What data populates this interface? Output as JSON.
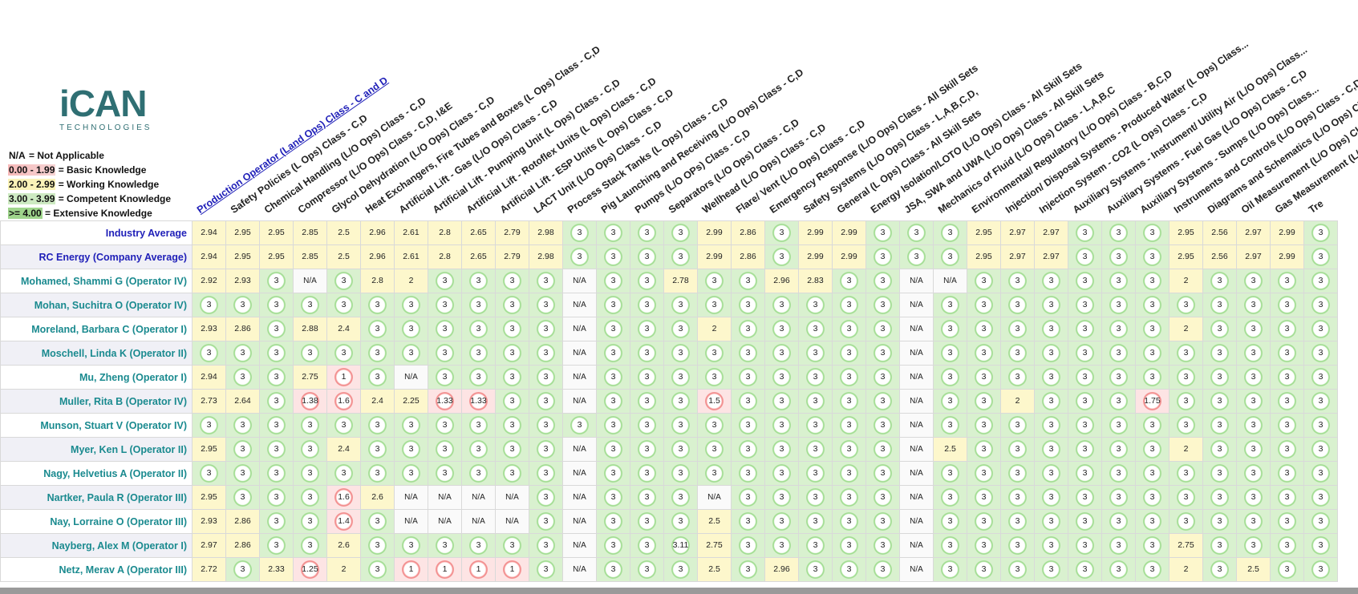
{
  "logo": {
    "word_i": "i",
    "word_c": "C",
    "word_an": "AN",
    "tagline": "TECHNOLOGIES"
  },
  "legend": [
    {
      "key": "N/A",
      "text": " = Not Applicable",
      "cls": ""
    },
    {
      "key": "0.00 - 1.99",
      "text": " = Basic Knowledge",
      "cls": "red"
    },
    {
      "key": "2.00 - 2.99",
      "text": " = Working Knowledge",
      "cls": "yel"
    },
    {
      "key": "3.00 - 3.99",
      "text": " = Competent Knowledge",
      "cls": "grn"
    },
    {
      "key": ">= 4.00",
      "text": " = Extensive Knowledge",
      "cls": "dgn"
    }
  ],
  "columns": [
    "Production Operator (Land Ops) Class - C and D",
    "Safety Policies (L Ops) Class - C,D",
    "Chemical Handling (L/O Ops) Class - C,D",
    "Compressor (L/O Ops) Class - C,D, I&E",
    "Glycol Dehydration (L/O Ops) Class - C,D",
    "Heat Exchangers, Fire Tubes and Boxes (L Ops) Class - C,D",
    "Artificial Lift - Gas (L/O Ops) Class - C,D",
    "Artificial Lift - Pumping Unit (L Ops) Class - C,D",
    "Artificial Lift - Rotoflex Units (L Ops) Class - C,D",
    "Artificial Lift - ESP Units (L Ops) Class - C,D",
    "LACT Unit (L/O Ops) Class - C,D",
    "Process Stack Tanks (L Ops) Class - C,D",
    "Pig Launching and Receiving (L/O Ops) Class - C,D",
    "Pumps (L/O OPs) Class - C,D",
    "Separators (L/O Ops) Class - C,D",
    "Wellhead (L/O Ops) Class - C,D",
    "Flare/ Vent (L/O Ops) Class - C,D",
    "Emergency Response (L/O Ops) Class - All Skill Sets",
    "Safety Systems (L/O Ops) Class - L,A,B,C,D,",
    "General (L Ops) Class - All Skill Sets",
    "Energy Isolation/LOTO (L/O Ops) Class - All Skill Sets",
    "JSA, SWA and UWA (L/O Ops) Class - All Skill Sets",
    "Mechanics of Fluid (L/O Ops) Class - L,A,B,C",
    "Environmental/ Regulatory (L/O Ops) Class - B,C,D",
    "Injection/ Disposal Systems - Produced Water (L Ops) Class...",
    "Injection System - CO2 (L Ops) Class - C,D",
    "Auxiliary Systems - Instrument/ Utility Air (L/O Ops) Class...",
    "Auxiliary Systems - Fuel Gas (L/O Ops) Class - C,D",
    "Auxiliary Systems - Sumps (L/O Ops) Class...",
    "Instruments and Controls (L/O Ops) Class - C,D",
    "Diagrams and Schematics (L/O Ops) Class -",
    "Oil Measurement (L/O Ops) Class...",
    "Gas Measurement (L/O Ops) Class",
    "Tre"
  ],
  "rows": [
    {
      "name": "Industry Average",
      "avg": true,
      "v": [
        "2.94",
        "2.95",
        "2.95",
        "2.85",
        "2.5",
        "2.96",
        "2.61",
        "2.8",
        "2.65",
        "2.79",
        "2.98",
        "3",
        "3",
        "3",
        "3",
        "2.99",
        "2.86",
        "3",
        "2.99",
        "2.99",
        "3",
        "3",
        "3",
        "2.95",
        "2.97",
        "2.97",
        "3",
        "3",
        "3",
        "2.95",
        "2.56",
        "2.97",
        "2.99",
        "3"
      ]
    },
    {
      "name": "RC Energy (Company Average)",
      "avg": true,
      "v": [
        "2.94",
        "2.95",
        "2.95",
        "2.85",
        "2.5",
        "2.96",
        "2.61",
        "2.8",
        "2.65",
        "2.79",
        "2.98",
        "3",
        "3",
        "3",
        "3",
        "2.99",
        "2.86",
        "3",
        "2.99",
        "2.99",
        "3",
        "3",
        "3",
        "2.95",
        "2.97",
        "2.97",
        "3",
        "3",
        "3",
        "2.95",
        "2.56",
        "2.97",
        "2.99",
        "3"
      ]
    },
    {
      "name": "Mohamed, Shammi G (Operator IV)",
      "v": [
        "2.92",
        "2.93",
        "3",
        "N/A",
        "3",
        "2.8",
        "2",
        "3",
        "3",
        "3",
        "3",
        "N/A",
        "3",
        "3",
        "2.78",
        "3",
        "3",
        "2.96",
        "2.83",
        "3",
        "3",
        "N/A",
        "N/A",
        "3",
        "3",
        "3",
        "3",
        "3",
        "3",
        "2",
        "3",
        "3",
        "3",
        "3"
      ]
    },
    {
      "name": "Mohan, Suchitra O (Operator IV)",
      "v": [
        "3",
        "3",
        "3",
        "3",
        "3",
        "3",
        "3",
        "3",
        "3",
        "3",
        "3",
        "N/A",
        "3",
        "3",
        "3",
        "3",
        "3",
        "3",
        "3",
        "3",
        "3",
        "N/A",
        "3",
        "3",
        "3",
        "3",
        "3",
        "3",
        "3",
        "3",
        "3",
        "3",
        "3",
        "3"
      ]
    },
    {
      "name": "Moreland, Barbara C (Operator I)",
      "v": [
        "2.93",
        "2.86",
        "3",
        "2.88",
        "2.4",
        "3",
        "3",
        "3",
        "3",
        "3",
        "3",
        "N/A",
        "3",
        "3",
        "3",
        "2",
        "3",
        "3",
        "3",
        "3",
        "3",
        "N/A",
        "3",
        "3",
        "3",
        "3",
        "3",
        "3",
        "3",
        "2",
        "3",
        "3",
        "3",
        "3"
      ]
    },
    {
      "name": "Moschell, Linda K (Operator II)",
      "v": [
        "3",
        "3",
        "3",
        "3",
        "3",
        "3",
        "3",
        "3",
        "3",
        "3",
        "3",
        "N/A",
        "3",
        "3",
        "3",
        "3",
        "3",
        "3",
        "3",
        "3",
        "3",
        "N/A",
        "3",
        "3",
        "3",
        "3",
        "3",
        "3",
        "3",
        "3",
        "3",
        "3",
        "3",
        "3"
      ]
    },
    {
      "name": "Mu, Zheng (Operator I)",
      "v": [
        "2.94",
        "3",
        "3",
        "2.75",
        "1",
        "3",
        "N/A",
        "3",
        "3",
        "3",
        "3",
        "N/A",
        "3",
        "3",
        "3",
        "3",
        "3",
        "3",
        "3",
        "3",
        "3",
        "N/A",
        "3",
        "3",
        "3",
        "3",
        "3",
        "3",
        "3",
        "3",
        "3",
        "3",
        "3",
        "3"
      ]
    },
    {
      "name": "Muller, Rita B (Operator IV)",
      "v": [
        "2.73",
        "2.64",
        "3",
        "1.38",
        "1.6",
        "2.4",
        "2.25",
        "1.33",
        "1.33",
        "3",
        "3",
        "N/A",
        "3",
        "3",
        "3",
        "1.5",
        "3",
        "3",
        "3",
        "3",
        "3",
        "N/A",
        "3",
        "3",
        "2",
        "3",
        "3",
        "3",
        "1.75",
        "3",
        "3",
        "3",
        "3",
        "3"
      ]
    },
    {
      "name": "Munson, Stuart V (Operator IV)",
      "v": [
        "3",
        "3",
        "3",
        "3",
        "3",
        "3",
        "3",
        "3",
        "3",
        "3",
        "3",
        "3",
        "3",
        "3",
        "3",
        "3",
        "3",
        "3",
        "3",
        "3",
        "3",
        "N/A",
        "3",
        "3",
        "3",
        "3",
        "3",
        "3",
        "3",
        "3",
        "3",
        "3",
        "3",
        "3"
      ]
    },
    {
      "name": "Myer, Ken L (Operator II)",
      "v": [
        "2.95",
        "3",
        "3",
        "3",
        "2.4",
        "3",
        "3",
        "3",
        "3",
        "3",
        "3",
        "N/A",
        "3",
        "3",
        "3",
        "3",
        "3",
        "3",
        "3",
        "3",
        "3",
        "N/A",
        "2.5",
        "3",
        "3",
        "3",
        "3",
        "3",
        "3",
        "2",
        "3",
        "3",
        "3",
        "3"
      ]
    },
    {
      "name": "Nagy, Helvetius A (Operator II)",
      "v": [
        "3",
        "3",
        "3",
        "3",
        "3",
        "3",
        "3",
        "3",
        "3",
        "3",
        "3",
        "N/A",
        "3",
        "3",
        "3",
        "3",
        "3",
        "3",
        "3",
        "3",
        "3",
        "N/A",
        "3",
        "3",
        "3",
        "3",
        "3",
        "3",
        "3",
        "3",
        "3",
        "3",
        "3",
        "3"
      ]
    },
    {
      "name": "Nartker, Paula R (Operator III)",
      "v": [
        "2.95",
        "3",
        "3",
        "3",
        "1.6",
        "2.6",
        "N/A",
        "N/A",
        "N/A",
        "N/A",
        "3",
        "N/A",
        "3",
        "3",
        "3",
        "N/A",
        "3",
        "3",
        "3",
        "3",
        "3",
        "N/A",
        "3",
        "3",
        "3",
        "3",
        "3",
        "3",
        "3",
        "3",
        "3",
        "3",
        "3",
        "3"
      ]
    },
    {
      "name": "Nay, Lorraine O (Operator III)",
      "v": [
        "2.93",
        "2.86",
        "3",
        "3",
        "1.4",
        "3",
        "N/A",
        "N/A",
        "N/A",
        "N/A",
        "3",
        "N/A",
        "3",
        "3",
        "3",
        "2.5",
        "3",
        "3",
        "3",
        "3",
        "3",
        "N/A",
        "3",
        "3",
        "3",
        "3",
        "3",
        "3",
        "3",
        "3",
        "3",
        "3",
        "3",
        "3"
      ]
    },
    {
      "name": "Nayberg, Alex M (Operator I)",
      "v": [
        "2.97",
        "2.86",
        "3",
        "3",
        "2.6",
        "3",
        "3",
        "3",
        "3",
        "3",
        "3",
        "N/A",
        "3",
        "3",
        "3.11",
        "2.75",
        "3",
        "3",
        "3",
        "3",
        "3",
        "N/A",
        "3",
        "3",
        "3",
        "3",
        "3",
        "3",
        "3",
        "2.75",
        "3",
        "3",
        "3",
        "3"
      ]
    },
    {
      "name": "Netz, Merav A (Operator III)",
      "v": [
        "2.72",
        "3",
        "2.33",
        "1.25",
        "2",
        "3",
        "1",
        "1",
        "1",
        "1",
        "3",
        "N/A",
        "3",
        "3",
        "3",
        "2.5",
        "3",
        "2.96",
        "3",
        "3",
        "3",
        "N/A",
        "3",
        "3",
        "3",
        "3",
        "3",
        "3",
        "3",
        "2",
        "3",
        "2.5",
        "3",
        "3"
      ]
    }
  ]
}
